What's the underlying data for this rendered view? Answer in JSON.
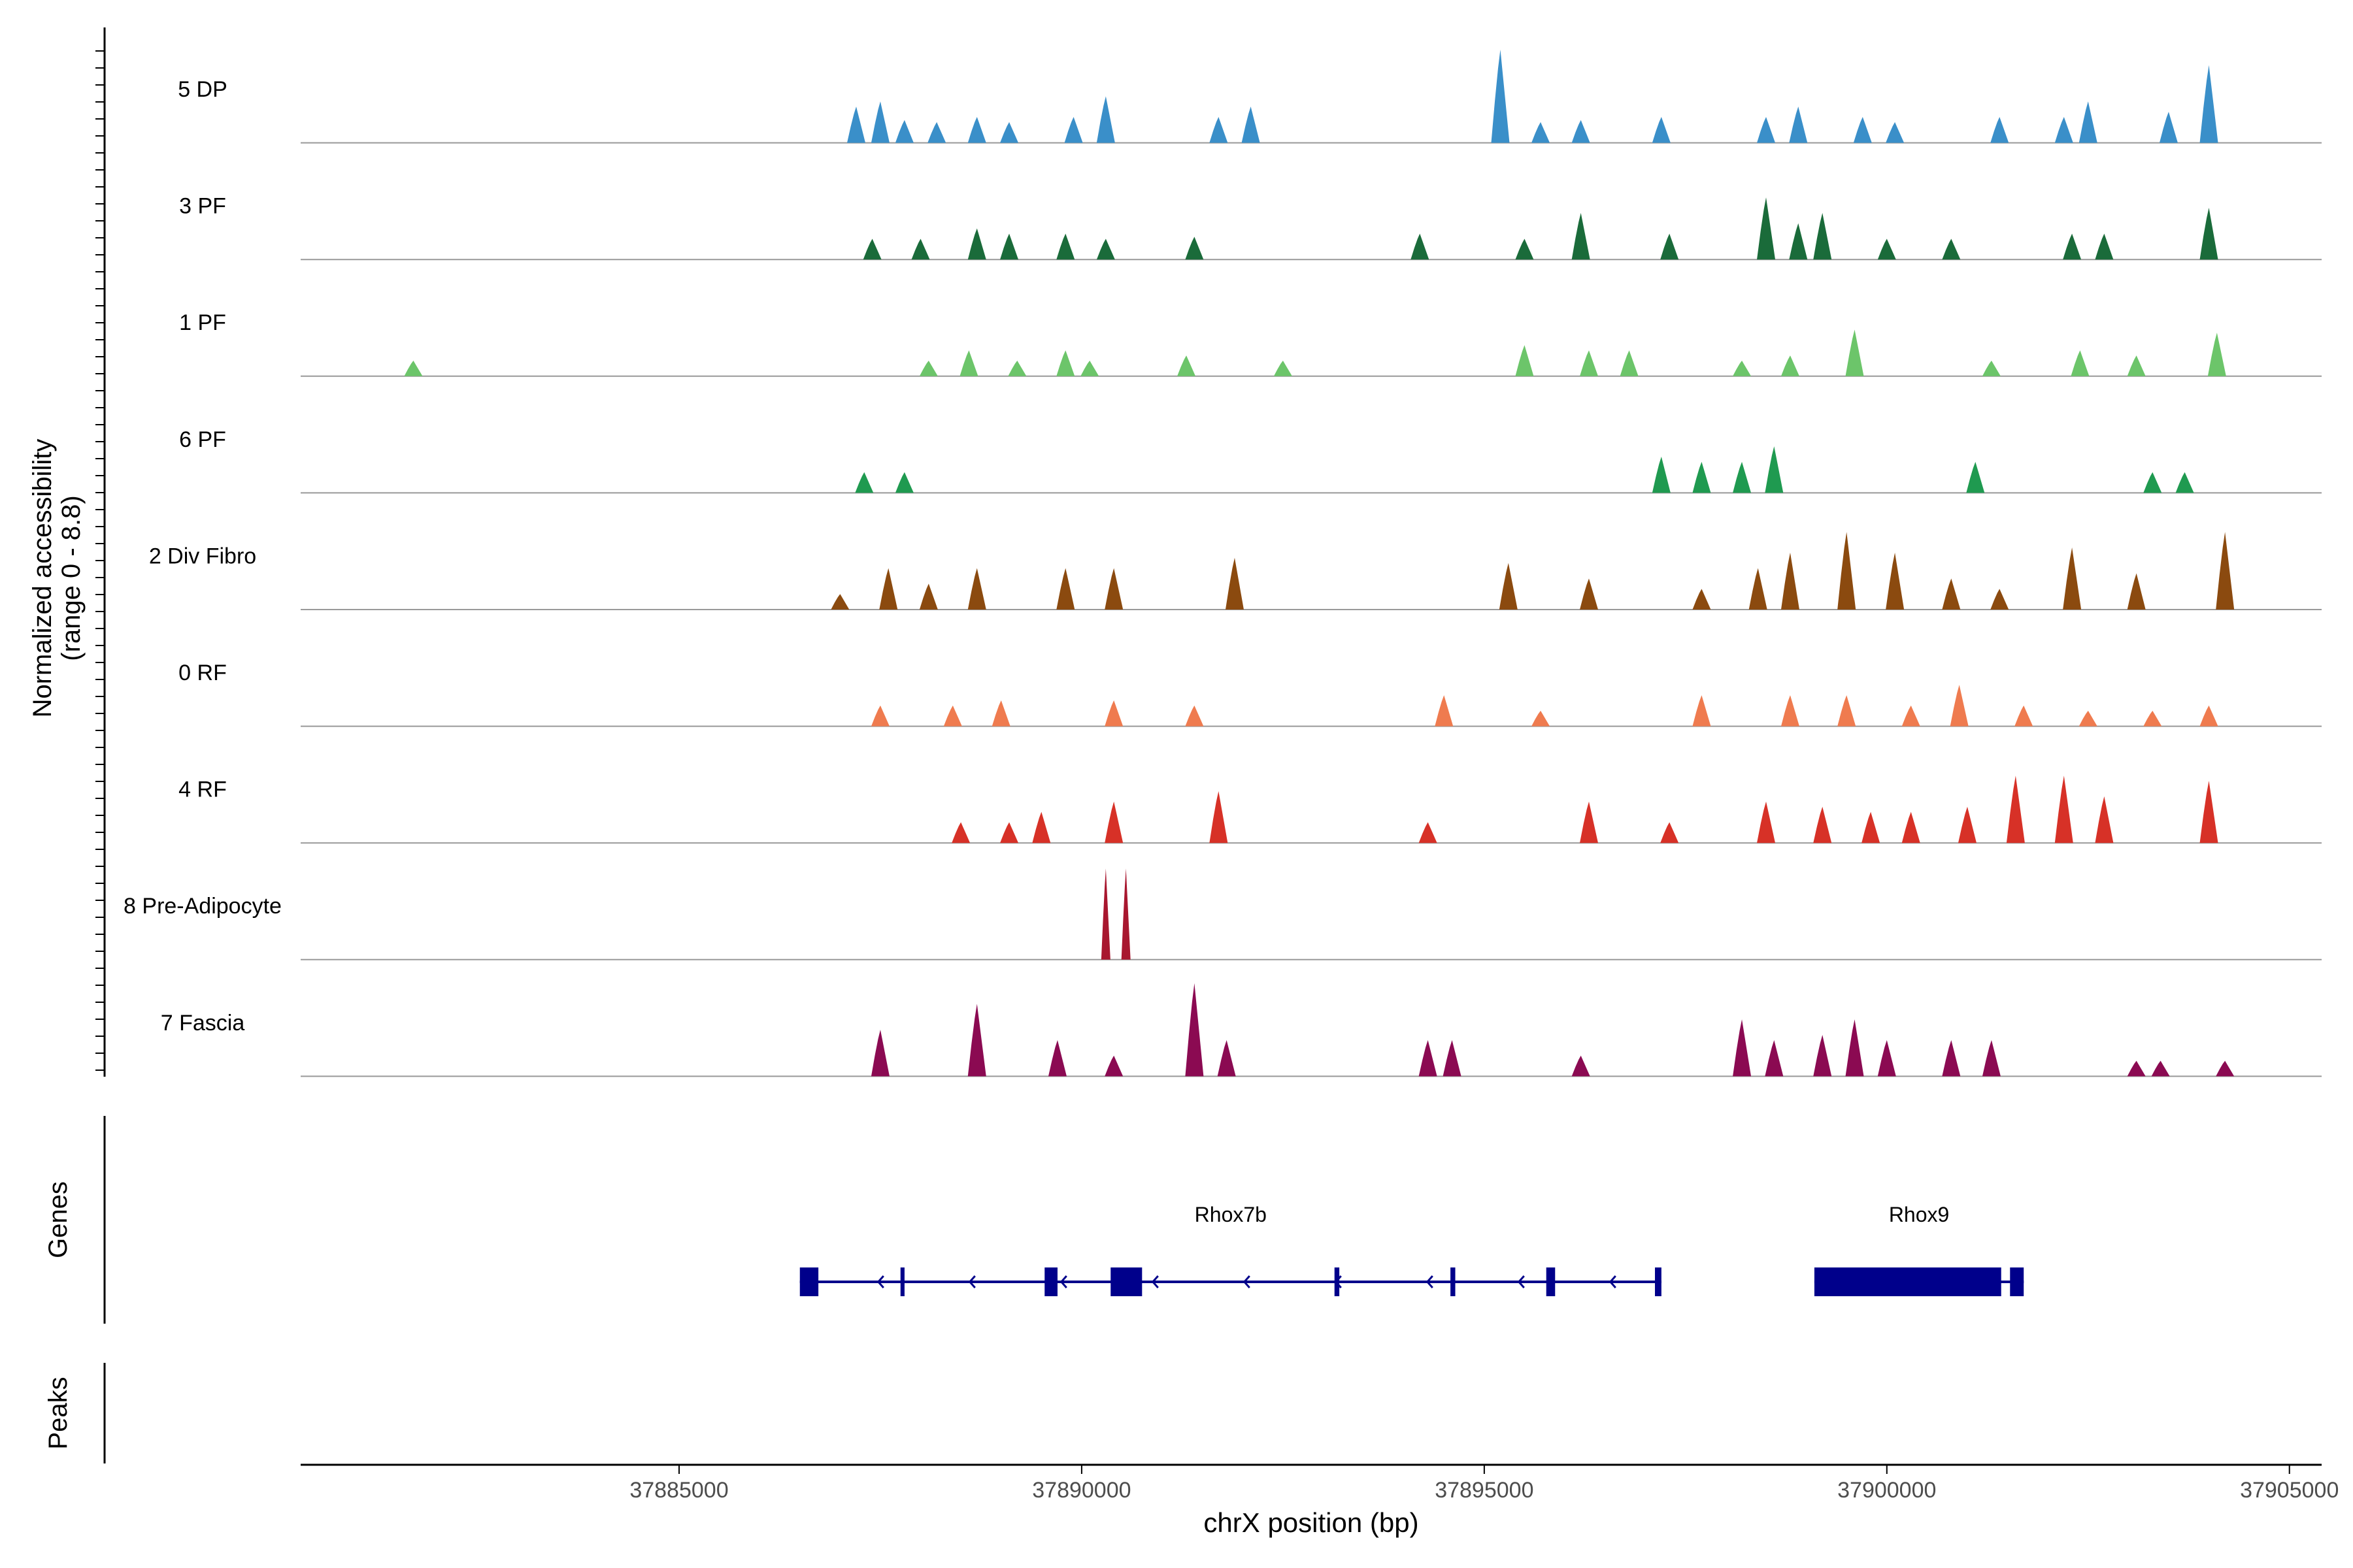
{
  "chart_data": {
    "type": "area",
    "title": "",
    "ylabel_line1": "Normalized accessibility",
    "ylabel_line2": "(range 0 - 8.8)",
    "xlabel": "chrX position (bp)",
    "xlim": [
      37880300,
      37905400
    ],
    "ylim": [
      0,
      8.8
    ],
    "x_ticks": [
      37885000,
      37890000,
      37895000,
      37900000,
      37905000
    ],
    "x_tick_labels": [
      "37885000",
      "37890000",
      "37895000",
      "37900000",
      "37905000"
    ],
    "tracks": [
      {
        "name": "5 DP",
        "color": "#3a8fc9",
        "peaks": [
          [
            37887200,
            3.5
          ],
          [
            37887500,
            4.0
          ],
          [
            37887800,
            2.2
          ],
          [
            37888200,
            2.0
          ],
          [
            37888700,
            2.5
          ],
          [
            37889100,
            2.0
          ],
          [
            37889900,
            2.5
          ],
          [
            37890300,
            4.5
          ],
          [
            37891700,
            2.5
          ],
          [
            37892100,
            3.5
          ],
          [
            37895200,
            9.0
          ],
          [
            37895700,
            2.0
          ],
          [
            37896200,
            2.2
          ],
          [
            37897200,
            2.5
          ],
          [
            37898500,
            2.5
          ],
          [
            37898900,
            3.5
          ],
          [
            37899700,
            2.5
          ],
          [
            37900100,
            2.0
          ],
          [
            37901400,
            2.5
          ],
          [
            37902200,
            2.5
          ],
          [
            37902500,
            4.0
          ],
          [
            37903500,
            3.0
          ],
          [
            37904000,
            7.5
          ]
        ]
      },
      {
        "name": "3 PF",
        "color": "#1a6b3a",
        "peaks": [
          [
            37887400,
            2.0
          ],
          [
            37888000,
            2.0
          ],
          [
            37888700,
            3.0
          ],
          [
            37889100,
            2.5
          ],
          [
            37889800,
            2.5
          ],
          [
            37890300,
            2.0
          ],
          [
            37891400,
            2.2
          ],
          [
            37894200,
            2.5
          ],
          [
            37895500,
            2.0
          ],
          [
            37896200,
            4.5
          ],
          [
            37897300,
            2.5
          ],
          [
            37898500,
            6.0
          ],
          [
            37898900,
            3.5
          ],
          [
            37899200,
            4.5
          ],
          [
            37900000,
            2.0
          ],
          [
            37900800,
            2.0
          ],
          [
            37902300,
            2.5
          ],
          [
            37902700,
            2.5
          ],
          [
            37904000,
            5.0
          ]
        ]
      },
      {
        "name": "1 PF",
        "color": "#6cc56a",
        "peaks": [
          [
            37881700,
            1.5
          ],
          [
            37888100,
            1.5
          ],
          [
            37888600,
            2.5
          ],
          [
            37889200,
            1.5
          ],
          [
            37889800,
            2.5
          ],
          [
            37890100,
            1.5
          ],
          [
            37891300,
            2.0
          ],
          [
            37892500,
            1.5
          ],
          [
            37895500,
            3.0
          ],
          [
            37896300,
            2.5
          ],
          [
            37896800,
            2.5
          ],
          [
            37898200,
            1.5
          ],
          [
            37898800,
            2.0
          ],
          [
            37899600,
            4.5
          ],
          [
            37901300,
            1.5
          ],
          [
            37902400,
            2.5
          ],
          [
            37903100,
            2.0
          ],
          [
            37904100,
            4.2
          ]
        ]
      },
      {
        "name": "6 PF",
        "color": "#1f9a50",
        "peaks": [
          [
            37887300,
            2.0
          ],
          [
            37887800,
            2.0
          ],
          [
            37897200,
            3.5
          ],
          [
            37897700,
            3.0
          ],
          [
            37898200,
            3.0
          ],
          [
            37898600,
            4.5
          ],
          [
            37901100,
            3.0
          ],
          [
            37903300,
            2.0
          ],
          [
            37903700,
            2.0
          ]
        ]
      },
      {
        "name": "2 Div Fibro",
        "color": "#8b4a0f",
        "peaks": [
          [
            37887000,
            1.5
          ],
          [
            37887600,
            4.0
          ],
          [
            37888100,
            2.5
          ],
          [
            37888700,
            4.0
          ],
          [
            37889800,
            4.0
          ],
          [
            37890400,
            4.0
          ],
          [
            37891900,
            5.0
          ],
          [
            37895300,
            4.5
          ],
          [
            37896300,
            3.0
          ],
          [
            37897700,
            2.0
          ],
          [
            37898400,
            4.0
          ],
          [
            37898800,
            5.5
          ],
          [
            37899500,
            7.5
          ],
          [
            37900100,
            5.5
          ],
          [
            37900800,
            3.0
          ],
          [
            37901400,
            2.0
          ],
          [
            37902300,
            6.0
          ],
          [
            37903100,
            3.5
          ],
          [
            37904200,
            7.5
          ]
        ]
      },
      {
        "name": "0 RF",
        "color": "#ef7b4f",
        "peaks": [
          [
            37887500,
            2.0
          ],
          [
            37888400,
            2.0
          ],
          [
            37889000,
            2.5
          ],
          [
            37890400,
            2.5
          ],
          [
            37891400,
            2.0
          ],
          [
            37894500,
            3.0
          ],
          [
            37895700,
            1.5
          ],
          [
            37897700,
            3.0
          ],
          [
            37898800,
            3.0
          ],
          [
            37899500,
            3.0
          ],
          [
            37900300,
            2.0
          ],
          [
            37900900,
            4.0
          ],
          [
            37901700,
            2.0
          ],
          [
            37902500,
            1.5
          ],
          [
            37903300,
            1.5
          ],
          [
            37904000,
            2.0
          ]
        ]
      },
      {
        "name": "4 RF",
        "color": "#d73127",
        "peaks": [
          [
            37888500,
            2.0
          ],
          [
            37889100,
            2.0
          ],
          [
            37889500,
            3.0
          ],
          [
            37890400,
            4.0
          ],
          [
            37891700,
            5.0
          ],
          [
            37894300,
            2.0
          ],
          [
            37896300,
            4.0
          ],
          [
            37897300,
            2.0
          ],
          [
            37898500,
            4.0
          ],
          [
            37899200,
            3.5
          ],
          [
            37899800,
            3.0
          ],
          [
            37900300,
            3.0
          ],
          [
            37901000,
            3.5
          ],
          [
            37901600,
            6.5
          ],
          [
            37902200,
            6.5
          ],
          [
            37902700,
            4.5
          ],
          [
            37904000,
            6.0
          ]
        ]
      },
      {
        "name": "8 Pre-Adipocyte",
        "color": "#a8172f",
        "peaks": [
          [
            37890300,
            8.8
          ],
          [
            37890550,
            8.8
          ]
        ]
      },
      {
        "name": "7 Fascia",
        "color": "#8b0a52",
        "peaks": [
          [
            37887500,
            4.5
          ],
          [
            37888700,
            7.0
          ],
          [
            37889700,
            3.5
          ],
          [
            37890400,
            2.0
          ],
          [
            37891400,
            9.0
          ],
          [
            37891800,
            3.5
          ],
          [
            37894300,
            3.5
          ],
          [
            37894600,
            3.5
          ],
          [
            37896200,
            2.0
          ],
          [
            37898200,
            5.5
          ],
          [
            37898600,
            3.5
          ],
          [
            37899200,
            4.0
          ],
          [
            37899600,
            5.5
          ],
          [
            37900000,
            3.5
          ],
          [
            37900800,
            3.5
          ],
          [
            37901300,
            3.5
          ],
          [
            37903100,
            1.5
          ],
          [
            37903400,
            1.5
          ],
          [
            37904200,
            1.5
          ]
        ]
      }
    ],
    "genes_panel_label": "Genes",
    "peaks_panel_label": "Peaks",
    "genes": [
      {
        "name": "Rhox7b",
        "start": 37886500,
        "end": 37897200,
        "strand": "-",
        "exons": [
          [
            37886500,
            37886730
          ],
          [
            37887750,
            37887800
          ],
          [
            37889540,
            37889700
          ],
          [
            37890360,
            37890750
          ],
          [
            37893140,
            37893200
          ],
          [
            37894580,
            37894640
          ],
          [
            37895770,
            37895880
          ],
          [
            37897120,
            37897200
          ]
        ]
      },
      {
        "name": "Rhox9",
        "start": 37899100,
        "end": 37901700,
        "strand": "+",
        "exons": [
          [
            37899100,
            37901420
          ],
          [
            37901530,
            37901700
          ]
        ]
      }
    ],
    "gene_color": "#00008b"
  }
}
